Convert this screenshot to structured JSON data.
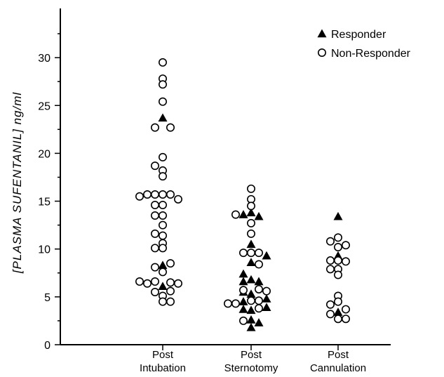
{
  "chart_data": {
    "type": "scatter",
    "title": "",
    "xlabel": "",
    "ylabel": "[PLASMA SUFENTANIL] ng/ml",
    "ylim": [
      0,
      35
    ],
    "yticks": [
      "0",
      "5",
      "10",
      "15",
      "20",
      "25",
      "30"
    ],
    "categories": [
      {
        "key": "intubation",
        "lines": [
          "Post",
          "Intubation"
        ]
      },
      {
        "key": "sternotomy",
        "lines": [
          "Post",
          "Sternotomy"
        ]
      },
      {
        "key": "cannulation",
        "lines": [
          "Post",
          "Cannulation"
        ]
      }
    ],
    "legend": {
      "position": "top-right",
      "entries": [
        {
          "name": "Responder",
          "marker": "filled-triangle"
        },
        {
          "name": "Non-Responder",
          "marker": "open-circle"
        }
      ]
    },
    "series": [
      {
        "name": "Responder",
        "marker": "filled-triangle",
        "points": [
          {
            "category": "intubation",
            "offset": 0,
            "y": 23.7
          },
          {
            "category": "intubation",
            "offset": 0,
            "y": 8.3
          },
          {
            "category": "intubation",
            "offset": 0,
            "y": 6.1
          },
          {
            "category": "sternotomy",
            "offset": -1,
            "y": 13.6
          },
          {
            "category": "sternotomy",
            "offset": 0,
            "y": 13.8
          },
          {
            "category": "sternotomy",
            "offset": 1,
            "y": 13.4
          },
          {
            "category": "sternotomy",
            "offset": 0,
            "y": 10.5
          },
          {
            "category": "sternotomy",
            "offset": 2,
            "y": 9.3
          },
          {
            "category": "sternotomy",
            "offset": 0,
            "y": 8.6
          },
          {
            "category": "sternotomy",
            "offset": -1,
            "y": 7.4
          },
          {
            "category": "sternotomy",
            "offset": -1,
            "y": 6.6
          },
          {
            "category": "sternotomy",
            "offset": 0,
            "y": 6.8
          },
          {
            "category": "sternotomy",
            "offset": 1,
            "y": 6.6
          },
          {
            "category": "sternotomy",
            "offset": -1,
            "y": 5.5
          },
          {
            "category": "sternotomy",
            "offset": 0,
            "y": 5.3
          },
          {
            "category": "sternotomy",
            "offset": -1,
            "y": 4.5
          },
          {
            "category": "sternotomy",
            "offset": 2,
            "y": 4.8
          },
          {
            "category": "sternotomy",
            "offset": -1,
            "y": 3.7
          },
          {
            "category": "sternotomy",
            "offset": 0,
            "y": 3.6
          },
          {
            "category": "sternotomy",
            "offset": 2,
            "y": 3.9
          },
          {
            "category": "sternotomy",
            "offset": 0,
            "y": 2.6
          },
          {
            "category": "sternotomy",
            "offset": 1,
            "y": 2.3
          },
          {
            "category": "sternotomy",
            "offset": 0,
            "y": 1.8
          },
          {
            "category": "cannulation",
            "offset": 0,
            "y": 13.4
          },
          {
            "category": "cannulation",
            "offset": 0,
            "y": 9.3
          },
          {
            "category": "cannulation",
            "offset": 0,
            "y": 3.4
          }
        ]
      },
      {
        "name": "Non-Responder",
        "marker": "open-circle",
        "points": [
          {
            "category": "intubation",
            "offset": 0,
            "y": 29.5
          },
          {
            "category": "intubation",
            "offset": 0,
            "y": 27.8
          },
          {
            "category": "intubation",
            "offset": 0,
            "y": 27.2
          },
          {
            "category": "intubation",
            "offset": 0,
            "y": 25.4
          },
          {
            "category": "intubation",
            "offset": -1,
            "y": 22.7
          },
          {
            "category": "intubation",
            "offset": 1,
            "y": 22.7
          },
          {
            "category": "intubation",
            "offset": 0,
            "y": 19.6
          },
          {
            "category": "intubation",
            "offset": -1,
            "y": 18.7
          },
          {
            "category": "intubation",
            "offset": 0,
            "y": 18.2
          },
          {
            "category": "intubation",
            "offset": 0,
            "y": 17.6
          },
          {
            "category": "intubation",
            "offset": -3,
            "y": 15.5
          },
          {
            "category": "intubation",
            "offset": -2,
            "y": 15.7
          },
          {
            "category": "intubation",
            "offset": -1,
            "y": 15.7
          },
          {
            "category": "intubation",
            "offset": 0,
            "y": 15.7
          },
          {
            "category": "intubation",
            "offset": 1,
            "y": 15.7
          },
          {
            "category": "intubation",
            "offset": 2,
            "y": 15.2
          },
          {
            "category": "intubation",
            "offset": -1,
            "y": 14.6
          },
          {
            "category": "intubation",
            "offset": 0,
            "y": 14.6
          },
          {
            "category": "intubation",
            "offset": -1,
            "y": 13.5
          },
          {
            "category": "intubation",
            "offset": 0,
            "y": 13.5
          },
          {
            "category": "intubation",
            "offset": 0,
            "y": 12.5
          },
          {
            "category": "intubation",
            "offset": -1,
            "y": 11.6
          },
          {
            "category": "intubation",
            "offset": 0,
            "y": 11.4
          },
          {
            "category": "intubation",
            "offset": 0,
            "y": 10.6
          },
          {
            "category": "intubation",
            "offset": -1,
            "y": 10.1
          },
          {
            "category": "intubation",
            "offset": 0,
            "y": 10.1
          },
          {
            "category": "intubation",
            "offset": -1,
            "y": 8.1
          },
          {
            "category": "intubation",
            "offset": 1,
            "y": 8.5
          },
          {
            "category": "intubation",
            "offset": 0,
            "y": 7.6
          },
          {
            "category": "intubation",
            "offset": -3,
            "y": 6.6
          },
          {
            "category": "intubation",
            "offset": -2,
            "y": 6.4
          },
          {
            "category": "intubation",
            "offset": -1,
            "y": 6.6
          },
          {
            "category": "intubation",
            "offset": 1,
            "y": 6.5
          },
          {
            "category": "intubation",
            "offset": 2,
            "y": 6.4
          },
          {
            "category": "intubation",
            "offset": 1,
            "y": 5.6
          },
          {
            "category": "intubation",
            "offset": -1,
            "y": 5.5
          },
          {
            "category": "intubation",
            "offset": 0,
            "y": 5.1
          },
          {
            "category": "intubation",
            "offset": 0,
            "y": 4.5
          },
          {
            "category": "intubation",
            "offset": 1,
            "y": 4.5
          },
          {
            "category": "sternotomy",
            "offset": 0,
            "y": 16.3
          },
          {
            "category": "sternotomy",
            "offset": 0,
            "y": 15.2
          },
          {
            "category": "sternotomy",
            "offset": 0,
            "y": 14.5
          },
          {
            "category": "sternotomy",
            "offset": -2,
            "y": 13.6
          },
          {
            "category": "sternotomy",
            "offset": 0,
            "y": 12.7
          },
          {
            "category": "sternotomy",
            "offset": 0,
            "y": 11.6
          },
          {
            "category": "sternotomy",
            "offset": -1,
            "y": 9.6
          },
          {
            "category": "sternotomy",
            "offset": 0,
            "y": 9.6
          },
          {
            "category": "sternotomy",
            "offset": 1,
            "y": 9.6
          },
          {
            "category": "sternotomy",
            "offset": 1,
            "y": 8.4
          },
          {
            "category": "sternotomy",
            "offset": -1,
            "y": 5.7
          },
          {
            "category": "sternotomy",
            "offset": 1,
            "y": 5.8
          },
          {
            "category": "sternotomy",
            "offset": 2,
            "y": 5.6
          },
          {
            "category": "sternotomy",
            "offset": 0,
            "y": 4.6
          },
          {
            "category": "sternotomy",
            "offset": 1,
            "y": 4.6
          },
          {
            "category": "sternotomy",
            "offset": -3,
            "y": 4.3
          },
          {
            "category": "sternotomy",
            "offset": -2,
            "y": 4.3
          },
          {
            "category": "sternotomy",
            "offset": 1,
            "y": 3.8
          },
          {
            "category": "sternotomy",
            "offset": -1,
            "y": 2.5
          },
          {
            "category": "cannulation",
            "offset": -1,
            "y": 10.8
          },
          {
            "category": "cannulation",
            "offset": 0,
            "y": 11.2
          },
          {
            "category": "cannulation",
            "offset": 1,
            "y": 10.4
          },
          {
            "category": "cannulation",
            "offset": 0,
            "y": 10.2
          },
          {
            "category": "cannulation",
            "offset": -1,
            "y": 8.8
          },
          {
            "category": "cannulation",
            "offset": 0,
            "y": 8.8
          },
          {
            "category": "cannulation",
            "offset": 1,
            "y": 8.7
          },
          {
            "category": "cannulation",
            "offset": -1,
            "y": 7.9
          },
          {
            "category": "cannulation",
            "offset": 0,
            "y": 7.9
          },
          {
            "category": "cannulation",
            "offset": 0,
            "y": 7.3
          },
          {
            "category": "cannulation",
            "offset": 0,
            "y": 5.1
          },
          {
            "category": "cannulation",
            "offset": -1,
            "y": 4.2
          },
          {
            "category": "cannulation",
            "offset": 0,
            "y": 4.5
          },
          {
            "category": "cannulation",
            "offset": -1,
            "y": 3.2
          },
          {
            "category": "cannulation",
            "offset": 1,
            "y": 3.7
          },
          {
            "category": "cannulation",
            "offset": 0,
            "y": 2.7
          },
          {
            "category": "cannulation",
            "offset": 1,
            "y": 2.7
          }
        ]
      }
    ]
  }
}
